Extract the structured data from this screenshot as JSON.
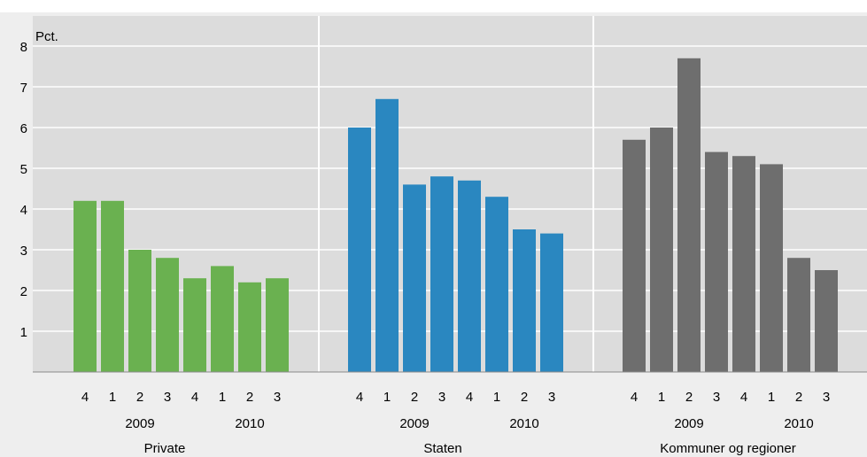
{
  "chart_data": {
    "type": "bar",
    "ylabel": "Pct.",
    "ylim": [
      0,
      8
    ],
    "yticks": [
      "1",
      "2",
      "3",
      "4",
      "5",
      "6",
      "7",
      "8"
    ],
    "grid": true,
    "panels": [
      {
        "name": "Private",
        "color": "#6ab150",
        "categories": [
          "4",
          "1",
          "2",
          "3",
          "4",
          "1",
          "2",
          "3"
        ],
        "years": [
          "2009",
          "2010"
        ],
        "values": [
          4.2,
          4.2,
          3.0,
          2.8,
          2.3,
          2.6,
          2.2,
          2.3
        ]
      },
      {
        "name": "Staten",
        "color": "#2a87c0",
        "categories": [
          "4",
          "1",
          "2",
          "3",
          "4",
          "1",
          "2",
          "3"
        ],
        "years": [
          "2009",
          "2010"
        ],
        "values": [
          6.0,
          6.7,
          4.6,
          4.8,
          4.7,
          4.3,
          3.5,
          3.4
        ]
      },
      {
        "name": "Kommuner og regioner",
        "color": "#6e6e6e",
        "categories": [
          "4",
          "1",
          "2",
          "3",
          "4",
          "1",
          "2",
          "3"
        ],
        "years": [
          "2009",
          "2010"
        ],
        "values": [
          5.7,
          6.0,
          7.7,
          5.4,
          5.3,
          5.1,
          2.8,
          2.5
        ]
      }
    ]
  }
}
